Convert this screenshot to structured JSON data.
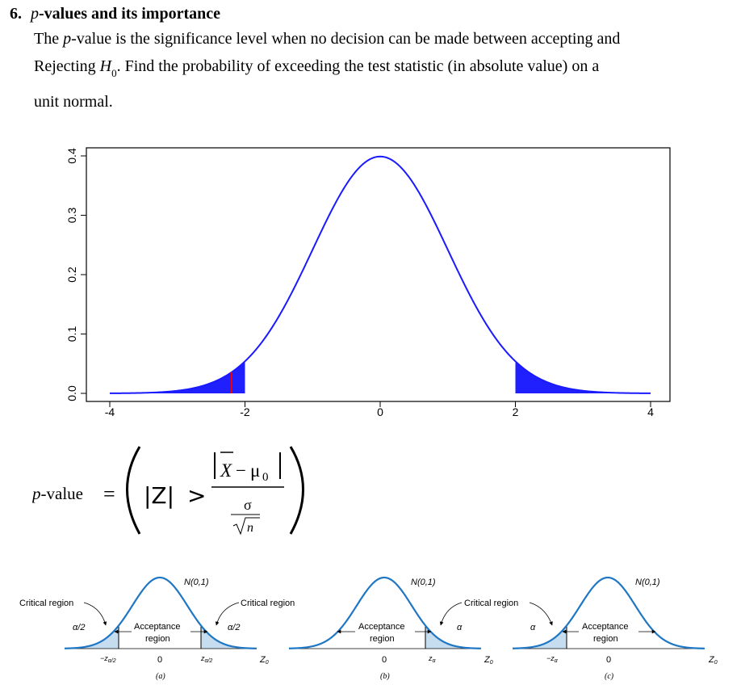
{
  "section": {
    "number": "6.",
    "title_italic": "p",
    "title_rest": "-values and its importance"
  },
  "paragraph": {
    "p": "p",
    "seg1": "The ",
    "seg2": "-value is the significance level when no decision can be made between accepting and",
    "seg3": "Rejecting ",
    "h": "H",
    "h_sub": "0",
    "seg4": ". Find the probability of exceeding the test statistic (in absolute value) on a",
    "seg5": "unit normal."
  },
  "chart_data": {
    "type": "area",
    "title": "",
    "xlabel": "",
    "ylabel": "",
    "xlim": [
      -4,
      4
    ],
    "ylim": [
      0,
      0.4
    ],
    "x_ticks": [
      "-4",
      "-2",
      "0",
      "2",
      "4"
    ],
    "y_ticks": [
      "0.0",
      "0.1",
      "0.2",
      "0.3",
      "0.4"
    ],
    "curve": "standard normal density",
    "shaded_left_tail": [
      -4,
      -2
    ],
    "shaded_right_tail": [
      2,
      4
    ],
    "marker_x": -2.2,
    "colors": {
      "curve": "#1a1aff",
      "fill": "#2020ff",
      "marker": "#ff0000"
    }
  },
  "formula": {
    "lhs_italic": "p",
    "lhs_rest": "-value",
    "eq": "=",
    "z": "|Z|",
    "gt": ">",
    "xbar": "X",
    "minus": "−",
    "mu": "μ",
    "mu_sub": "0",
    "sigma": "σ",
    "n": "n"
  },
  "diagrams": {
    "a": {
      "n01": "N(0,1)",
      "critical_left": "Critical region",
      "critical_right": "Critical region",
      "alpha_left": "α/2",
      "alpha_right": "α/2",
      "accept1": "Acceptance",
      "accept2": "region",
      "tick_left": "−z",
      "tick_left_sub": "α/2",
      "tick_zero": "0",
      "tick_right": "z",
      "tick_right_sub": "α/2",
      "z0": "Z",
      "z0_sub": "0",
      "caption": "(a)"
    },
    "b": {
      "n01": "N(0,1)",
      "critical": "Critical region",
      "alpha": "α",
      "accept1": "Acceptance",
      "accept2": "region",
      "tick_zero": "0",
      "tick_right": "z",
      "tick_right_sub": "α",
      "z0": "Z",
      "z0_sub": "0",
      "caption": "(b)"
    },
    "c": {
      "n01": "N(0,1)",
      "alpha": "α",
      "accept1": "Acceptance",
      "accept2": "region",
      "tick_left": "−z",
      "tick_left_sub": "α",
      "tick_zero": "0",
      "z0": "Z",
      "z0_sub": "0",
      "caption": "(c)"
    },
    "colors": {
      "curve": "#1f77c4",
      "fill": "#c6dcef"
    }
  }
}
